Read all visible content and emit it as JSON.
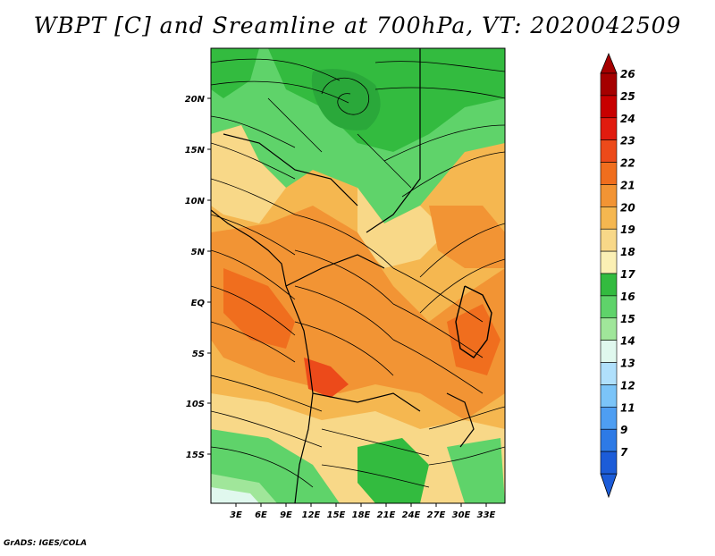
{
  "title": "WBPT [C] and Sreamline at 700hPa, VT: 2020042509",
  "credit": "GrADS: IGES/COLA",
  "map": {
    "lon_labels": [
      "3E",
      "6E",
      "9E",
      "12E",
      "15E",
      "18E",
      "21E",
      "24E",
      "27E",
      "30E",
      "33E"
    ],
    "lat_labels": [
      "20N",
      "15N",
      "10N",
      "5N",
      "EQ",
      "5S",
      "10S",
      "15S"
    ]
  },
  "colorbar": {
    "labels": [
      "26",
      "25",
      "24",
      "23",
      "22",
      "21",
      "20",
      "19",
      "18",
      "17",
      "16",
      "15",
      "14",
      "13",
      "12",
      "11",
      "9",
      "7"
    ],
    "colors": [
      "#a50000",
      "#c80000",
      "#e11b0f",
      "#ec4a1a",
      "#f06e1e",
      "#f29434",
      "#f5b750",
      "#f8d888",
      "#fbf0b4",
      "#33bb3f",
      "#5fd36a",
      "#a0e69a",
      "#e0f8ee",
      "#b0e0fc",
      "#7bc4f8",
      "#4e9ef2",
      "#2d7ae6",
      "#1c5cd8"
    ]
  }
}
